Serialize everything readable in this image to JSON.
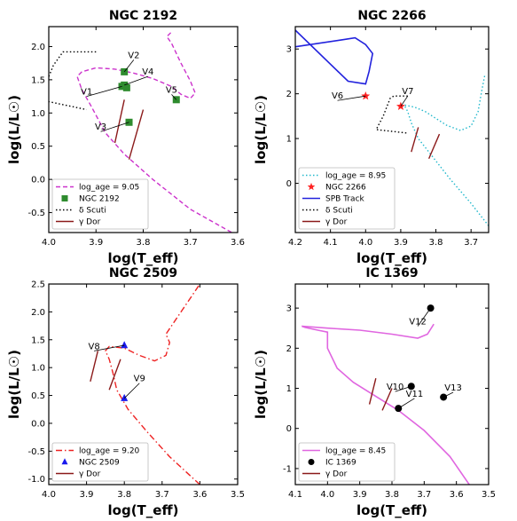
{
  "chart_data": [
    {
      "type": "scatter",
      "title": "NGC 2192",
      "xlabel": "log(T_eff)",
      "ylabel": "log(L/L☉)",
      "xlim": [
        4.0,
        3.6
      ],
      "ylim": [
        -0.8,
        2.3
      ],
      "xticks": [
        "4.0",
        "3.9",
        "3.8",
        "3.7",
        "3.6"
      ],
      "yticks": [
        "-0.5",
        "0.0",
        "0.5",
        "1.0",
        "1.5",
        "2.0"
      ],
      "legend": [
        "log_age = 9.05",
        "NGC 2192",
        "δ Scuti",
        "γ Dor"
      ],
      "legend_position": "lower-left",
      "series": [
        {
          "name": "log_age = 9.05",
          "style": "dashed",
          "color": "#cc33cc",
          "points": [
            [
              3.6,
              -0.85
            ],
            [
              3.7,
              -0.45
            ],
            [
              3.78,
              0.0
            ],
            [
              3.84,
              0.38
            ],
            [
              3.88,
              0.7
            ],
            [
              3.91,
              1.1
            ],
            [
              3.93,
              1.35
            ],
            [
              3.94,
              1.55
            ],
            [
              3.93,
              1.62
            ],
            [
              3.9,
              1.68
            ],
            [
              3.86,
              1.66
            ],
            [
              3.82,
              1.6
            ],
            [
              3.78,
              1.52
            ],
            [
              3.74,
              1.4
            ],
            [
              3.72,
              1.28
            ],
            [
              3.7,
              1.22
            ],
            [
              3.69,
              1.3
            ],
            [
              3.7,
              1.48
            ],
            [
              3.72,
              1.75
            ],
            [
              3.74,
              2.05
            ],
            [
              3.75,
              2.15
            ],
            [
              3.74,
              2.22
            ]
          ]
        },
        {
          "name": "NGC 2192",
          "style": "marker",
          "marker": "square",
          "color": "#2e8b2e",
          "points": [
            [
              3.84,
              1.62
            ],
            [
              3.84,
              1.42
            ],
            [
              3.835,
              1.38
            ],
            [
              3.845,
              1.4
            ],
            [
              3.73,
              1.2
            ],
            [
              3.83,
              0.86
            ]
          ]
        },
        {
          "name": "δ Scuti",
          "style": "dotted",
          "color": "#000000",
          "points": [
            [
              3.9,
              1.92
            ],
            [
              3.95,
              1.92
            ],
            [
              3.97,
              1.92
            ],
            [
              3.98,
              1.82
            ],
            [
              3.99,
              1.72
            ],
            [
              4.02,
              1.2
            ],
            [
              3.92,
              1.05
            ]
          ]
        },
        {
          "name": "γ Dor",
          "style": "segments",
          "color": "#8b1a1a",
          "segments": [
            [
              [
                3.86,
                0.55
              ],
              [
                3.84,
                1.2
              ]
            ],
            [
              [
                3.83,
                0.3
              ],
              [
                3.8,
                1.05
              ]
            ]
          ]
        }
      ],
      "annotations": [
        {
          "text": "V2",
          "point": [
            3.84,
            1.62
          ],
          "label_pos": [
            3.82,
            1.8
          ]
        },
        {
          "text": "V4",
          "point": [
            3.84,
            1.42
          ],
          "label_pos": [
            3.79,
            1.55
          ]
        },
        {
          "text": "V1",
          "point": [
            3.845,
            1.4
          ],
          "label_pos": [
            3.92,
            1.25
          ]
        },
        {
          "text": "V5",
          "point": [
            3.73,
            1.2
          ],
          "label_pos": [
            3.74,
            1.28
          ]
        },
        {
          "text": "V3",
          "point": [
            3.83,
            0.86
          ],
          "label_pos": [
            3.89,
            0.72
          ]
        }
      ]
    },
    {
      "type": "scatter",
      "title": "NGC 2266",
      "xlabel": "log(T_eff)",
      "ylabel": "log(L/L☉)",
      "xlim": [
        4.2,
        3.65
      ],
      "ylim": [
        -1.1,
        3.5
      ],
      "xticks": [
        "4.2",
        "4.1",
        "4.0",
        "3.9",
        "3.8",
        "3.7"
      ],
      "yticks": [
        "0",
        "1",
        "2",
        "3"
      ],
      "legend": [
        "log_age = 8.95",
        "NGC 2266",
        "SPB Track",
        "δ Scuti",
        "γ Dor"
      ],
      "legend_position": "lower-left",
      "series": [
        {
          "name": "log_age = 8.95",
          "style": "dotted",
          "color": "#22b8cc",
          "points": [
            [
              3.65,
              -0.95
            ],
            [
              3.7,
              -0.45
            ],
            [
              3.76,
              0.1
            ],
            [
              3.81,
              0.6
            ],
            [
              3.85,
              1.0
            ],
            [
              3.87,
              1.35
            ],
            [
              3.88,
              1.6
            ],
            [
              3.89,
              1.75
            ],
            [
              3.86,
              1.7
            ],
            [
              3.83,
              1.6
            ],
            [
              3.8,
              1.45
            ],
            [
              3.77,
              1.3
            ],
            [
              3.73,
              1.18
            ],
            [
              3.7,
              1.28
            ],
            [
              3.68,
              1.6
            ],
            [
              3.67,
              2.05
            ],
            [
              3.66,
              2.45
            ]
          ]
        },
        {
          "name": "NGC 2266",
          "style": "marker",
          "marker": "star",
          "color": "#ff2222",
          "points": [
            [
              4.0,
              1.95
            ],
            [
              3.9,
              1.72
            ]
          ]
        },
        {
          "name": "SPB Track",
          "style": "solid",
          "color": "#2222dd",
          "points": [
            [
              4.2,
              3.42
            ],
            [
              4.05,
              2.28
            ],
            [
              4.0,
              2.22
            ],
            [
              3.99,
              2.5
            ],
            [
              3.98,
              2.9
            ],
            [
              4.0,
              3.1
            ],
            [
              4.03,
              3.25
            ],
            [
              4.07,
              3.2
            ],
            [
              4.2,
              3.05
            ]
          ]
        },
        {
          "name": "δ Scuti",
          "style": "dotted",
          "color": "#000000",
          "points": [
            [
              3.88,
              1.95
            ],
            [
              3.92,
              1.95
            ],
            [
              3.93,
              1.9
            ],
            [
              3.95,
              1.5
            ],
            [
              3.97,
              1.2
            ],
            [
              3.88,
              1.12
            ]
          ]
        },
        {
          "name": "γ Dor",
          "style": "segments",
          "color": "#8b1a1a",
          "segments": [
            [
              [
                3.87,
                0.7
              ],
              [
                3.85,
                1.25
              ]
            ],
            [
              [
                3.82,
                0.55
              ],
              [
                3.79,
                1.1
              ]
            ]
          ]
        }
      ],
      "annotations": [
        {
          "text": "V6",
          "point": [
            4.0,
            1.95
          ],
          "label_pos": [
            4.08,
            1.85
          ]
        },
        {
          "text": "V7",
          "point": [
            3.9,
            1.72
          ],
          "label_pos": [
            3.88,
            1.95
          ]
        }
      ]
    },
    {
      "type": "scatter",
      "title": "NGC 2509",
      "xlabel": "log(T_eff)",
      "ylabel": "log(L/L☉)",
      "xlim": [
        4.0,
        3.5
      ],
      "ylim": [
        -1.1,
        2.5
      ],
      "xticks": [
        "4.0",
        "3.9",
        "3.8",
        "3.7",
        "3.6",
        "3.5"
      ],
      "yticks": [
        "-1.0",
        "-0.5",
        "0.0",
        "0.5",
        "1.0",
        "1.5",
        "2.0",
        "2.5"
      ],
      "legend": [
        "log_age = 9.20",
        "NGC 2509",
        "γ Dor"
      ],
      "legend_position": "lower-left",
      "series": [
        {
          "name": "log_age = 9.20",
          "style": "dashdot",
          "color": "#ee2222",
          "points": [
            [
              3.6,
              -1.1
            ],
            [
              3.68,
              -0.6
            ],
            [
              3.74,
              -0.15
            ],
            [
              3.79,
              0.25
            ],
            [
              3.82,
              0.6
            ],
            [
              3.83,
              0.9
            ],
            [
              3.84,
              1.15
            ],
            [
              3.85,
              1.3
            ],
            [
              3.84,
              1.38
            ],
            [
              3.8,
              1.35
            ],
            [
              3.76,
              1.22
            ],
            [
              3.72,
              1.12
            ],
            [
              3.69,
              1.22
            ],
            [
              3.68,
              1.45
            ],
            [
              3.69,
              1.6
            ],
            [
              3.66,
              1.9
            ],
            [
              3.62,
              2.3
            ],
            [
              3.6,
              2.5
            ]
          ]
        },
        {
          "name": "NGC 2509",
          "style": "marker",
          "marker": "triangle",
          "color": "#1a1aee",
          "points": [
            [
              3.8,
              1.4
            ],
            [
              3.8,
              0.45
            ]
          ]
        },
        {
          "name": "γ Dor",
          "style": "segments",
          "color": "#8b1a1a",
          "segments": [
            [
              [
                3.89,
                0.75
              ],
              [
                3.87,
                1.3
              ]
            ],
            [
              [
                3.84,
                0.6
              ],
              [
                3.81,
                1.15
              ]
            ]
          ]
        }
      ],
      "annotations": [
        {
          "text": "V8",
          "point": [
            3.8,
            1.4
          ],
          "label_pos": [
            3.88,
            1.3
          ]
        },
        {
          "text": "V9",
          "point": [
            3.8,
            0.45
          ],
          "label_pos": [
            3.76,
            0.72
          ]
        }
      ]
    },
    {
      "type": "scatter",
      "title": "IC 1369",
      "xlabel": "log(T_eff)",
      "ylabel": "log(L/L☉)",
      "xlim": [
        4.1,
        3.5
      ],
      "ylim": [
        -1.4,
        3.6
      ],
      "xticks": [
        "4.1",
        "4.0",
        "3.9",
        "3.8",
        "3.7",
        "3.6",
        "3.5"
      ],
      "yticks": [
        "-1",
        "0",
        "1",
        "2",
        "3"
      ],
      "legend": [
        "log_age = 8.45",
        "IC 1369",
        "γ Dor"
      ],
      "legend_position": "lower-left",
      "series": [
        {
          "name": "log_age = 8.45",
          "style": "solid",
          "color": "#e066e0",
          "points": [
            [
              3.56,
              -1.4
            ],
            [
              3.62,
              -0.7
            ],
            [
              3.7,
              -0.05
            ],
            [
              3.78,
              0.45
            ],
            [
              3.86,
              0.85
            ],
            [
              3.92,
              1.15
            ],
            [
              3.97,
              1.5
            ],
            [
              4.0,
              2.0
            ],
            [
              4.0,
              2.4
            ],
            [
              4.03,
              2.45
            ],
            [
              4.07,
              2.52
            ],
            [
              4.08,
              2.55
            ],
            [
              4.0,
              2.5
            ],
            [
              3.9,
              2.45
            ],
            [
              3.8,
              2.35
            ],
            [
              3.72,
              2.25
            ],
            [
              3.69,
              2.35
            ],
            [
              3.67,
              2.6
            ]
          ]
        },
        {
          "name": "IC 1369",
          "style": "marker",
          "marker": "circle",
          "color": "#000000",
          "points": [
            [
              3.68,
              3.0
            ],
            [
              3.74,
              1.05
            ],
            [
              3.78,
              0.5
            ],
            [
              3.64,
              0.78
            ]
          ]
        },
        {
          "name": "γ Dor",
          "style": "segments",
          "color": "#8b1a1a",
          "segments": [
            [
              [
                3.87,
                0.6
              ],
              [
                3.85,
                1.25
              ]
            ],
            [
              [
                3.83,
                0.45
              ],
              [
                3.8,
                1.0
              ]
            ]
          ]
        }
      ],
      "annotations": [
        {
          "text": "V12",
          "point": [
            3.68,
            3.0
          ],
          "label_pos": [
            3.72,
            2.55
          ]
        },
        {
          "text": "V10",
          "point": [
            3.74,
            1.05
          ],
          "label_pos": [
            3.79,
            0.92
          ]
        },
        {
          "text": "V11",
          "point": [
            3.78,
            0.5
          ],
          "label_pos": [
            3.73,
            0.75
          ]
        },
        {
          "text": "V13",
          "point": [
            3.64,
            0.78
          ],
          "label_pos": [
            3.61,
            0.9
          ]
        }
      ]
    }
  ]
}
